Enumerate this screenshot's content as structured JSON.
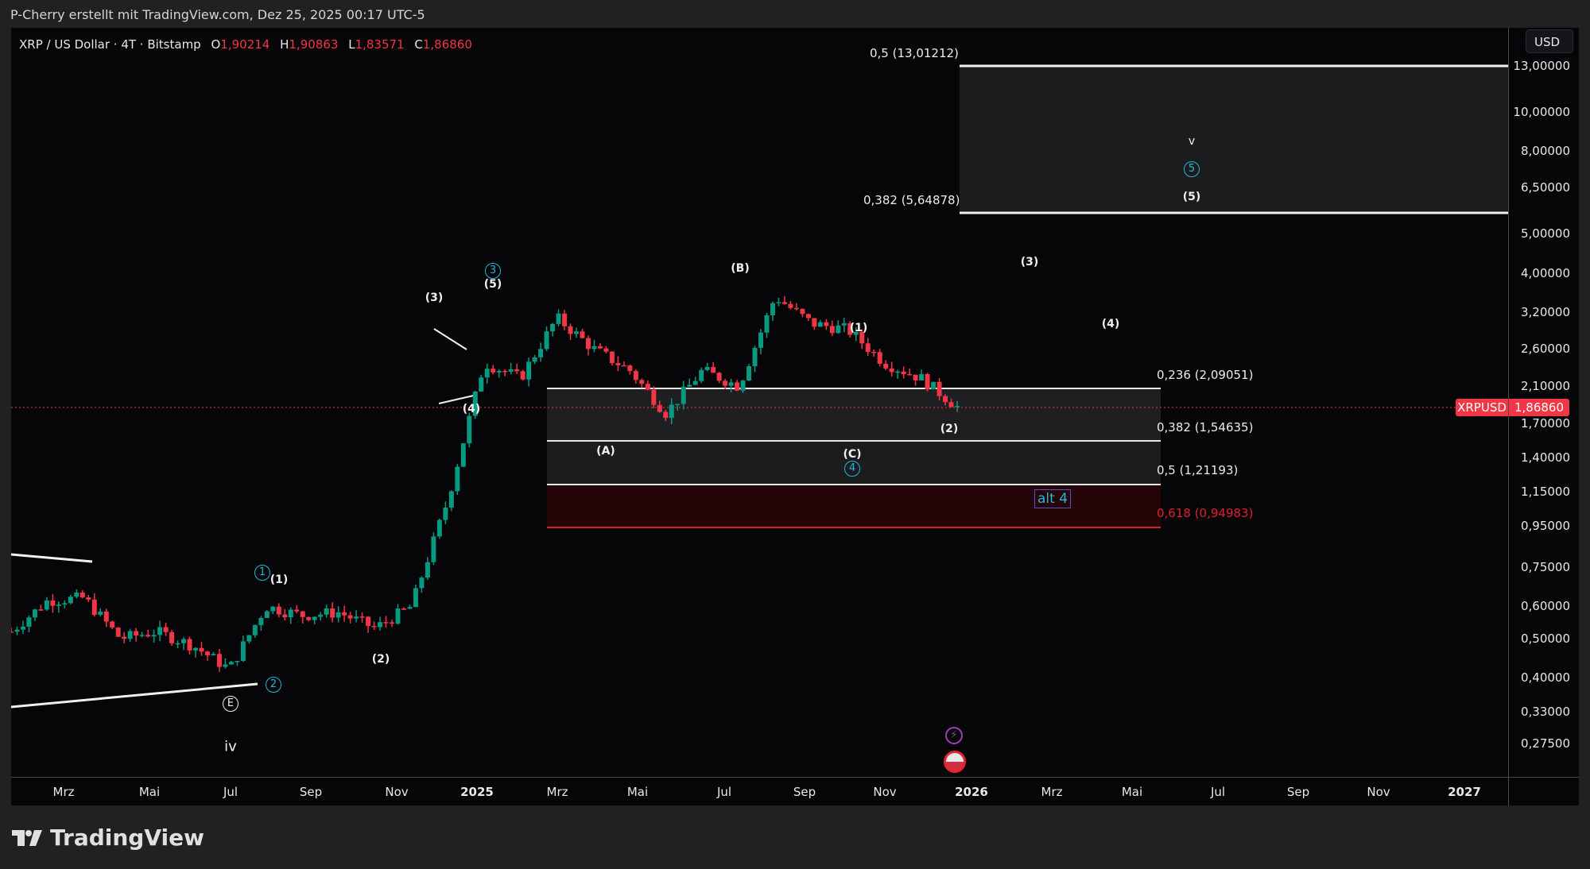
{
  "attribution": "P-Cherry erstellt mit TradingView.com, Dez 25, 2025 00:17 UTC-5",
  "legend": {
    "symbol": "XRP / US Dollar · 4T · Bitstamp",
    "open_label": "O",
    "open": "1,90214",
    "high_label": "H",
    "high": "1,90863",
    "low_label": "L",
    "low": "1,83571",
    "close_label": "C",
    "close": "1,86860"
  },
  "price_axis": {
    "currency_button": "USD",
    "ticks": [
      "13,00000",
      "10,00000",
      "8,00000",
      "6,50000",
      "5,00000",
      "4,00000",
      "3,20000",
      "2,60000",
      "2,10000",
      "1,70000",
      "1,40000",
      "1,15000",
      "0,95000",
      "0,75000",
      "0,60000",
      "0,50000",
      "0,40000",
      "0,33000",
      "0,27500"
    ],
    "last_price": "1,86860",
    "symbol_tag": "XRPUSD"
  },
  "time_axis": {
    "ticks": [
      {
        "label": "Mrz",
        "year": false
      },
      {
        "label": "Mai",
        "year": false
      },
      {
        "label": "Jul",
        "year": false
      },
      {
        "label": "Sep",
        "year": false
      },
      {
        "label": "Nov",
        "year": false
      },
      {
        "label": "2025",
        "year": true
      },
      {
        "label": "Mrz",
        "year": false
      },
      {
        "label": "Mai",
        "year": false
      },
      {
        "label": "Jul",
        "year": false
      },
      {
        "label": "Sep",
        "year": false
      },
      {
        "label": "Nov",
        "year": false
      },
      {
        "label": "2026",
        "year": true
      },
      {
        "label": "Mrz",
        "year": false
      },
      {
        "label": "Mai",
        "year": false
      },
      {
        "label": "Jul",
        "year": false
      },
      {
        "label": "Sep",
        "year": false
      },
      {
        "label": "Nov",
        "year": false
      },
      {
        "label": "2027",
        "year": true
      }
    ]
  },
  "fib_upper": [
    {
      "label": "0,5 (13,01212)",
      "level": 13.01212
    },
    {
      "label": "0,382 (5,64878)",
      "level": 5.64878
    }
  ],
  "fib_lower": [
    {
      "label": "0,236 (2,09051)",
      "level": 2.09051
    },
    {
      "label": "0,382 (1,54635)",
      "level": 1.54635
    },
    {
      "label": "0,5 (1,21193)",
      "level": 1.21193
    },
    {
      "label": "0,618 (0,94983)",
      "level": 0.94983
    }
  ],
  "waves": {
    "iv": "iv",
    "E": "E",
    "c1": "1",
    "p1": "(1)",
    "c2": "2",
    "p2a": "(2)",
    "p3a": "(3)",
    "p4a": "(4)",
    "c3": "3",
    "p5a": "(5)",
    "A": "(A)",
    "B": "(B)",
    "C": "(C)",
    "c4": "4",
    "p1b": "(1)",
    "p2b": "(2)",
    "p3b": "(3)",
    "p4b": "(4)",
    "p5b": "(5)",
    "c5": "5",
    "v": "v"
  },
  "alt_label": "alt 4",
  "branding": "TradingView",
  "colors": {
    "up": "#089981",
    "down": "#f23645",
    "background": "#060609",
    "fib_red": "#e0202e",
    "wave_cyan": "#22b7d9"
  },
  "chart_data": {
    "type": "candlestick",
    "title": "XRP / US Dollar · 4T · Bitstamp",
    "ylabel": "USD",
    "yscale": "log",
    "ylim": [
      0.25,
      14
    ],
    "x_range": [
      "2024-02",
      "2027-01"
    ],
    "last_close": 1.8686,
    "ohlc_last": {
      "open": 1.90214,
      "high": 1.90863,
      "low": 1.83571,
      "close": 1.8686
    },
    "approx_weekly_closes": [
      {
        "date": "2024-02",
        "close": 0.52
      },
      {
        "date": "2024-03",
        "close": 0.62
      },
      {
        "date": "2024-03-end",
        "close": 0.63
      },
      {
        "date": "2024-04",
        "close": 0.5
      },
      {
        "date": "2024-05",
        "close": 0.52
      },
      {
        "date": "2024-06",
        "close": 0.48
      },
      {
        "date": "2024-07-05",
        "close": 0.42
      },
      {
        "date": "2024-07-20",
        "close": 0.6
      },
      {
        "date": "2024-08",
        "close": 0.57
      },
      {
        "date": "2024-09",
        "close": 0.58
      },
      {
        "date": "2024-10",
        "close": 0.53
      },
      {
        "date": "2024-11-10",
        "close": 0.6
      },
      {
        "date": "2024-11-20",
        "close": 1.1
      },
      {
        "date": "2024-12-02",
        "close": 2.4
      },
      {
        "date": "2024-12-20",
        "close": 2.2
      },
      {
        "date": "2025-01-15",
        "close": 3.1
      },
      {
        "date": "2025-02",
        "close": 2.6
      },
      {
        "date": "2025-03",
        "close": 2.3
      },
      {
        "date": "2025-04-07",
        "close": 1.8
      },
      {
        "date": "2025-05",
        "close": 2.3
      },
      {
        "date": "2025-06",
        "close": 2.1
      },
      {
        "date": "2025-07-18",
        "close": 3.5
      },
      {
        "date": "2025-08",
        "close": 3.0
      },
      {
        "date": "2025-09",
        "close": 2.9
      },
      {
        "date": "2025-10-10",
        "close": 2.4
      },
      {
        "date": "2025-11",
        "close": 2.2
      },
      {
        "date": "2025-12-25",
        "close": 1.87
      }
    ],
    "fib_levels": [
      {
        "ratio": "0,5",
        "price": 13.01212
      },
      {
        "ratio": "0,382",
        "price": 5.64878
      },
      {
        "ratio": "0,236",
        "price": 2.09051
      },
      {
        "ratio": "0,382",
        "price": 1.54635
      },
      {
        "ratio": "0,5",
        "price": 1.21193
      },
      {
        "ratio": "0,618",
        "price": 0.94983
      }
    ],
    "annotations": [
      "iv",
      "E",
      "1",
      "(1)",
      "2",
      "(2)",
      "(3)",
      "(4)",
      "3",
      "(5)",
      "(A)",
      "(B)",
      "(C)",
      "4",
      "(1)",
      "(2)",
      "(3)",
      "(4)",
      "(5)",
      "5",
      "v",
      "alt 4"
    ]
  }
}
